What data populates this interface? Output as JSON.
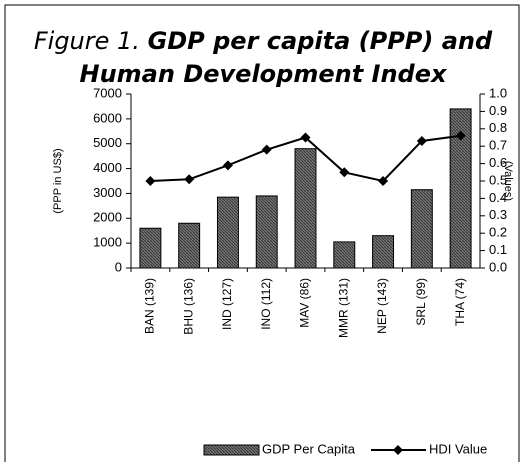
{
  "chart_data": {
    "type": "bar-line",
    "figure_label": "Figure 1.",
    "title_lines": [
      "GDP per capita (PPP) and",
      "Human Development Index"
    ],
    "y_label": "(PPP in US$)",
    "y2_label": "(Values)",
    "categories": [
      "BAN (139)",
      "BHU (136)",
      "IND (127)",
      "INO (112)",
      "MAV (86)",
      "MMR (131)",
      "NEP (143)",
      "SRL (99)",
      "THA (74)"
    ],
    "series": [
      {
        "name": "GDP Per Capita",
        "kind": "bar",
        "color": "#555555",
        "values": [
          1600,
          1800,
          2850,
          2900,
          4800,
          1050,
          1300,
          3150,
          6400
        ]
      },
      {
        "name": "HDI Value",
        "kind": "line",
        "axis": "y2",
        "color": "#000000",
        "values": [
          0.5,
          0.51,
          0.59,
          0.68,
          0.75,
          0.55,
          0.5,
          0.73,
          0.76
        ]
      }
    ],
    "ylim": [
      0,
      7000
    ],
    "yticks": [
      0,
      1000,
      2000,
      3000,
      4000,
      5000,
      6000,
      7000
    ],
    "y2lim": [
      0,
      1
    ],
    "y2ticks": [
      {
        "value": 0,
        "label": "0.0"
      },
      0.1,
      0.2,
      0.3,
      0.4,
      0.5,
      0.6,
      0.7,
      0.8,
      0.9,
      {
        "value": 1,
        "label": "1.0"
      }
    ]
  }
}
